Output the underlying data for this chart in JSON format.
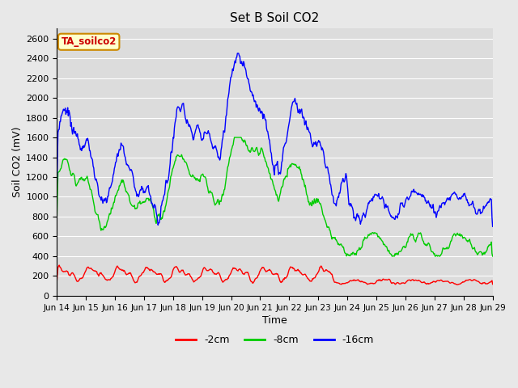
{
  "title": "Set B Soil CO2",
  "xlabel": "Time",
  "ylabel": "Soil CO2 (mV)",
  "ylim": [
    0,
    2700
  ],
  "yticks": [
    0,
    200,
    400,
    600,
    800,
    1000,
    1200,
    1400,
    1600,
    1800,
    2000,
    2200,
    2400,
    2600
  ],
  "xtick_labels": [
    "Jun 14",
    "Jun 15",
    "Jun 16",
    "Jun 17",
    "Jun 18",
    "Jun 19",
    "Jun 20",
    "Jun 21",
    "Jun 22",
    "Jun 23",
    "Jun 24",
    "Jun 25",
    "Jun 26",
    "Jun 27",
    "Jun 28",
    "Jun 29"
  ],
  "legend_labels": [
    "-2cm",
    "-8cm",
    "-16cm"
  ],
  "legend_colors": [
    "#ff0000",
    "#00cc00",
    "#0000ff"
  ],
  "line_width": 1.0,
  "bg_color": "#e8e8e8",
  "plot_bg_color": "#dcdcdc",
  "annotation_text": "TA_soilco2",
  "annotation_bg": "#ffffcc",
  "annotation_border": "#cc8800",
  "grid_color": "#ffffff"
}
